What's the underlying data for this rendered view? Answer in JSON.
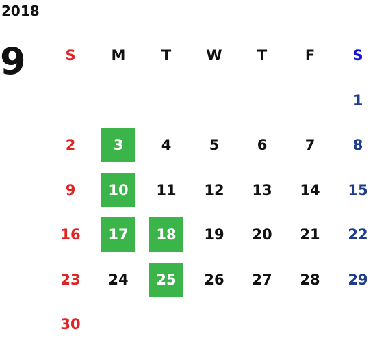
{
  "calendar": {
    "year": "2018",
    "month": "9",
    "weekdays": [
      "S",
      "M",
      "T",
      "W",
      "T",
      "F",
      "S"
    ],
    "weeks": [
      [
        null,
        null,
        null,
        null,
        null,
        null,
        {
          "day": 1,
          "highlighted": false
        }
      ],
      [
        {
          "day": 2,
          "highlighted": false
        },
        {
          "day": 3,
          "highlighted": true
        },
        {
          "day": 4,
          "highlighted": false
        },
        {
          "day": 5,
          "highlighted": false
        },
        {
          "day": 6,
          "highlighted": false
        },
        {
          "day": 7,
          "highlighted": false
        },
        {
          "day": 8,
          "highlighted": false
        }
      ],
      [
        {
          "day": 9,
          "highlighted": false
        },
        {
          "day": 10,
          "highlighted": true
        },
        {
          "day": 11,
          "highlighted": false
        },
        {
          "day": 12,
          "highlighted": false
        },
        {
          "day": 13,
          "highlighted": false
        },
        {
          "day": 14,
          "highlighted": false
        },
        {
          "day": 15,
          "highlighted": false
        }
      ],
      [
        {
          "day": 16,
          "highlighted": false
        },
        {
          "day": 17,
          "highlighted": true
        },
        {
          "day": 18,
          "highlighted": true
        },
        {
          "day": 19,
          "highlighted": false
        },
        {
          "day": 20,
          "highlighted": false
        },
        {
          "day": 21,
          "highlighted": false
        },
        {
          "day": 22,
          "highlighted": false
        }
      ],
      [
        {
          "day": 23,
          "highlighted": false
        },
        {
          "day": 24,
          "highlighted": false
        },
        {
          "day": 25,
          "highlighted": true
        },
        {
          "day": 26,
          "highlighted": false
        },
        {
          "day": 27,
          "highlighted": false
        },
        {
          "day": 28,
          "highlighted": false
        },
        {
          "day": 29,
          "highlighted": false
        }
      ],
      [
        {
          "day": 30,
          "highlighted": false
        }
      ]
    ]
  }
}
